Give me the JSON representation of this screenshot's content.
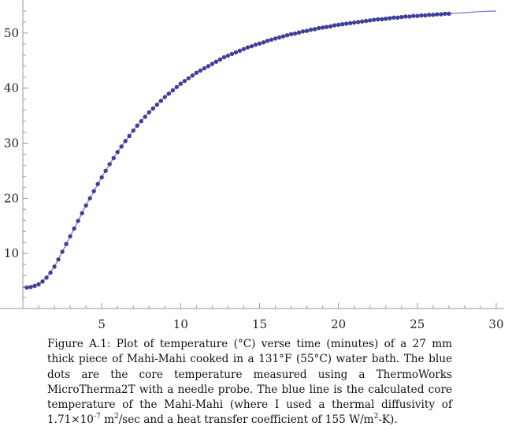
{
  "chart_data": {
    "type": "scatter",
    "title": "",
    "xlabel": "",
    "ylabel": "",
    "xlim": [
      -0.4,
      30.5
    ],
    "ylim": [
      0,
      56
    ],
    "x_ticks": [
      "5",
      "10",
      "15",
      "20",
      "25",
      "30"
    ],
    "y_ticks": [
      "10",
      "20",
      "30",
      "40",
      "50"
    ],
    "grid": false,
    "colors": {
      "line": "#7b7fc6",
      "dots": "#3f3f9a",
      "axis": "#999999"
    },
    "series": [
      {
        "style": "dots",
        "x": [
          0.25,
          0.5,
          0.75,
          1,
          1.25,
          1.5,
          1.75,
          2,
          2.25,
          2.5,
          2.75,
          3,
          3.25,
          3.5,
          3.75,
          4,
          4.25,
          4.5,
          4.75,
          5,
          5.25,
          5.5,
          5.75,
          6,
          6.25,
          6.5,
          6.75,
          7,
          7.25,
          7.5,
          7.75,
          8,
          8.25,
          8.5,
          8.75,
          9,
          9.25,
          9.5,
          9.75,
          10,
          10.25,
          10.5,
          10.75,
          11,
          11.25,
          11.5,
          11.75,
          12,
          12.25,
          12.5,
          12.75,
          13,
          13.25,
          13.5,
          13.75,
          14,
          14.25,
          14.5,
          14.75,
          15,
          15.25,
          15.5,
          15.75,
          16,
          16.25,
          16.5,
          16.75,
          17,
          17.25,
          17.5,
          17.75,
          18,
          18.25,
          18.5,
          18.75,
          19,
          19.25,
          19.5,
          19.75,
          20,
          20.25,
          20.5,
          20.75,
          21,
          21.25,
          21.5,
          21.75,
          22,
          22.25,
          22.5,
          22.75,
          23,
          23.25,
          23.5,
          23.75,
          24,
          24.25,
          24.5,
          24.75,
          25,
          25.25,
          25.5,
          25.75,
          26,
          26.25,
          26.5,
          26.75,
          27
        ],
        "y": [
          3.8,
          3.9,
          4.1,
          4.4,
          4.9,
          5.6,
          6.5,
          7.6,
          8.9,
          10.3,
          11.7,
          13.1,
          14.5,
          15.9,
          17.3,
          18.7,
          20.0,
          21.3,
          22.6,
          23.8,
          25.0,
          26.2,
          27.3,
          28.4,
          29.4,
          30.4,
          31.3,
          32.3,
          33.2,
          34.0,
          34.8,
          35.6,
          36.3,
          37.0,
          37.7,
          38.4,
          39.0,
          39.6,
          40.2,
          40.8,
          41.3,
          41.8,
          42.3,
          42.8,
          43.2,
          43.6,
          44.0,
          44.4,
          44.8,
          45.2,
          45.6,
          45.9,
          46.2,
          46.5,
          46.8,
          47.1,
          47.4,
          47.6,
          47.9,
          48.1,
          48.3,
          48.6,
          48.8,
          49.0,
          49.2,
          49.4,
          49.6,
          49.8,
          49.9,
          50.1,
          50.3,
          50.4,
          50.6,
          50.7,
          50.9,
          51.0,
          51.1,
          51.2,
          51.4,
          51.5,
          51.6,
          51.7,
          51.8,
          51.9,
          52.0,
          52.1,
          52.2,
          52.3,
          52.4,
          52.5,
          52.5,
          52.6,
          52.7,
          52.8,
          52.8,
          52.9,
          53.0,
          53.0,
          53.1,
          53.1,
          53.2,
          53.2,
          53.3,
          53.3,
          53.4,
          53.4,
          53.5,
          53.5
        ]
      },
      {
        "style": "line",
        "x": [
          0,
          0.5,
          1,
          1.5,
          2,
          2.5,
          3,
          3.5,
          4,
          4.5,
          5,
          5.5,
          6,
          6.5,
          7,
          7.5,
          8,
          8.5,
          9,
          9.5,
          10,
          10.5,
          11,
          11.5,
          12,
          12.5,
          13,
          13.5,
          14,
          14.5,
          15,
          15.5,
          16,
          16.5,
          17,
          17.5,
          18,
          18.5,
          19,
          19.5,
          20,
          20.5,
          21,
          21.5,
          22,
          22.5,
          23,
          23.5,
          24,
          24.5,
          25,
          25.5,
          26,
          26.5,
          27,
          27.5,
          28,
          28.5,
          29,
          29.5,
          30
        ],
        "y": [
          3.8,
          3.9,
          4.4,
          5.6,
          7.6,
          10.3,
          13.1,
          15.9,
          18.7,
          21.3,
          23.8,
          26.2,
          28.4,
          30.4,
          32.3,
          34.0,
          35.6,
          37.0,
          38.4,
          39.6,
          40.8,
          41.8,
          42.8,
          43.6,
          44.4,
          45.2,
          45.9,
          46.5,
          47.1,
          47.6,
          48.1,
          48.6,
          49.0,
          49.4,
          49.8,
          50.1,
          50.4,
          50.7,
          51.0,
          51.2,
          51.5,
          51.7,
          51.9,
          52.1,
          52.3,
          52.5,
          52.6,
          52.8,
          52.9,
          53.0,
          53.1,
          53.2,
          53.3,
          53.4,
          53.5,
          53.6,
          53.7,
          53.8,
          53.9,
          53.95,
          54.0
        ]
      }
    ]
  },
  "caption": {
    "part1": "Figure A.1: Plot of temperature (°C) verse time (minutes) of a 27 mm thick piece of Mahi-Mahi cooked in a 131°F (55°C) water bath. The blue dots are the core temperature measured using a ThermoWorks MicroTherma2T with a needle probe. The blue line is the calculated core temperature of the Mahi-Mahi (where I used a thermal diffusivity of 1.71×10",
    "exp1": "-7",
    "part2": " m",
    "exp2": "2",
    "part3": "/sec and a heat transfer coefficient of 155 W/m",
    "exp3": "2",
    "part4": "-K)."
  }
}
